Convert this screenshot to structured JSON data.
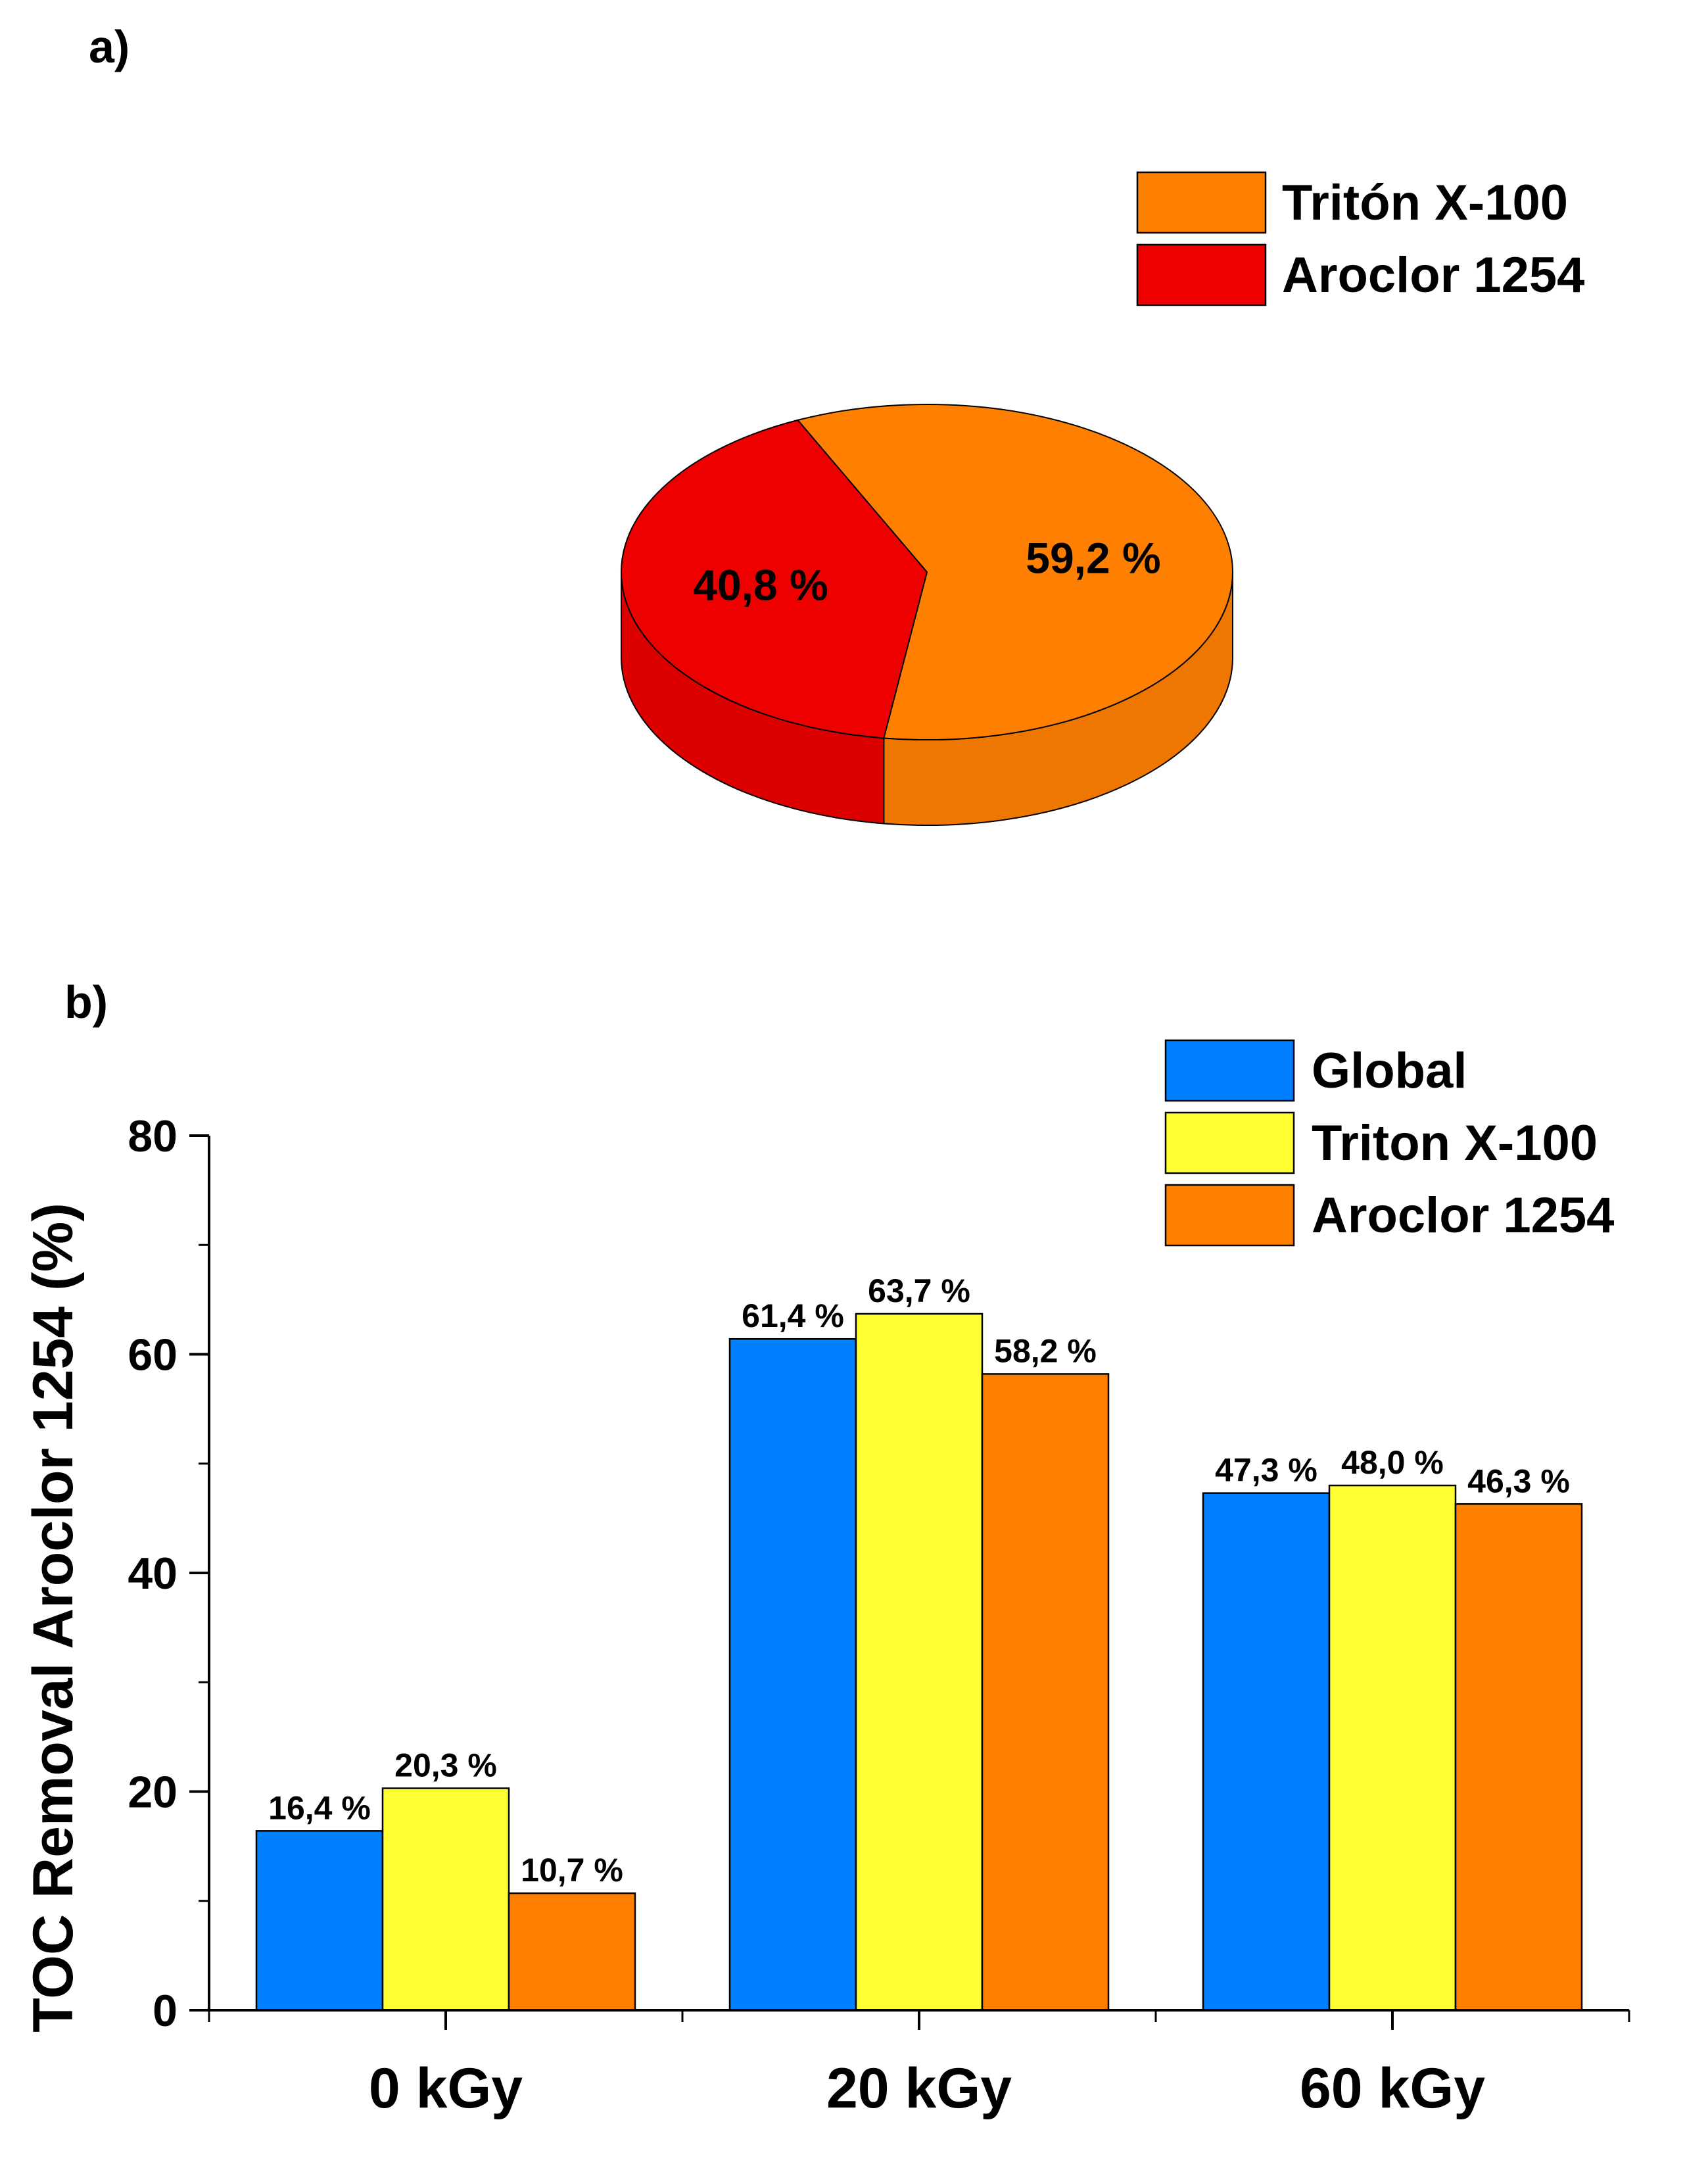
{
  "chart_data": [
    {
      "type": "pie",
      "panel_label": "a)",
      "labels": [
        "Tritón X-100",
        "Aroclor 1254"
      ],
      "values": [
        59.2,
        40.8
      ],
      "value_labels": [
        "59,2 %",
        "40,8 %"
      ],
      "colors": [
        "#FF8000",
        "#EE0000"
      ],
      "style": "3d",
      "legend_position": "top-right"
    },
    {
      "type": "bar",
      "panel_label": "b)",
      "categories": [
        "0 kGy",
        "20 kGy",
        "60 kGy"
      ],
      "series": [
        {
          "name": "Global",
          "color": "#0080FF",
          "values": [
            16.4,
            61.4,
            47.3
          ],
          "labels": [
            "16,4 %",
            "61,4 %",
            "47,3 %"
          ]
        },
        {
          "name": "Triton X-100",
          "color": "#FFFF33",
          "values": [
            20.3,
            63.7,
            48.0
          ],
          "labels": [
            "20,3 %",
            "63,7 %",
            "48,0 %"
          ]
        },
        {
          "name": "Aroclor 1254",
          "color": "#FF8000",
          "values": [
            10.7,
            58.2,
            46.3
          ],
          "labels": [
            "10,7 %",
            "58,2 %",
            "46,3 %"
          ]
        }
      ],
      "ylabel": "TOC Removal Aroclor 1254 (%)",
      "xlabel": "",
      "ylim": [
        0,
        80
      ],
      "yticks": [
        0,
        20,
        40,
        60,
        80
      ],
      "grid": false,
      "legend_position": "top-right"
    }
  ]
}
